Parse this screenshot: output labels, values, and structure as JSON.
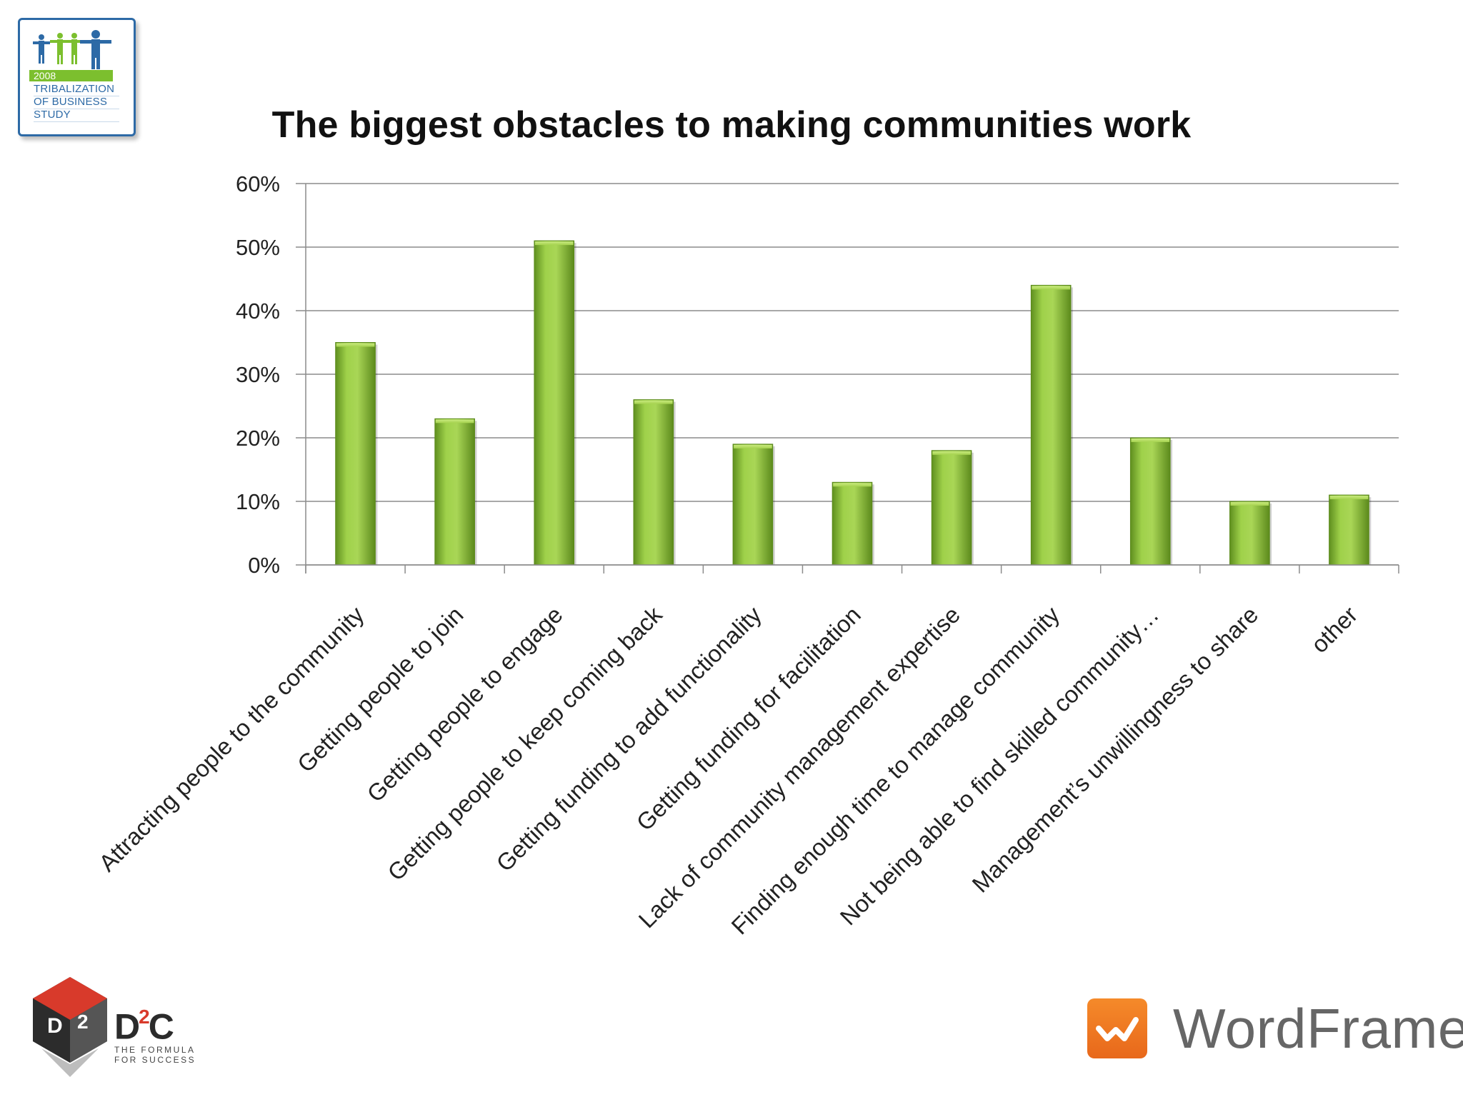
{
  "badge": {
    "year": "2008",
    "line1": "TRIBALIZATION",
    "line2": "OF BUSINESS",
    "line3": "STUDY"
  },
  "chart_data": {
    "type": "bar",
    "title": "The biggest obstacles to making communities work",
    "xlabel": "",
    "ylabel": "",
    "ylim": [
      0,
      0.6
    ],
    "yticks": [
      "0%",
      "10%",
      "20%",
      "30%",
      "40%",
      "50%",
      "60%"
    ],
    "grid": true,
    "legend": "none",
    "bar_color": "#8fc43c",
    "categories": [
      "Attracting people to the community",
      "Getting people to join",
      "Getting people to engage",
      "Getting people to keep coming back",
      "Getting funding to add functionality",
      "Getting funding for facilitation",
      "Lack of community management expertise",
      "Finding enough time to manage community",
      "Not being able to find skilled community…",
      "Management’s unwillingness to share",
      "other"
    ],
    "values": [
      0.35,
      0.23,
      0.51,
      0.26,
      0.19,
      0.13,
      0.18,
      0.44,
      0.2,
      0.1,
      0.11
    ]
  },
  "logos": {
    "d2c_brand": "D",
    "d2c_sup": "2",
    "d2c_brand_end": "C",
    "d2c_tagline_1": "THE FORMULA",
    "d2c_tagline_2": "FOR SUCCESS",
    "wordframe": "WordFrame"
  }
}
